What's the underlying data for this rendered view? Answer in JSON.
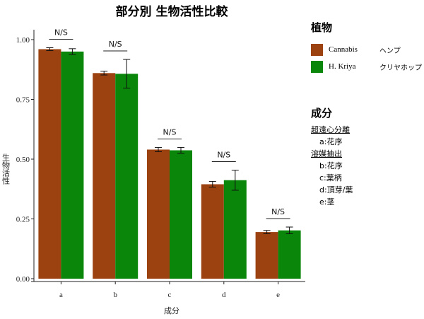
{
  "chart_data": {
    "type": "bar",
    "title": "部分別 生物活性比較",
    "xlabel": "成分",
    "ylabel": "生物活性",
    "categories": [
      "a",
      "b",
      "c",
      "d",
      "e"
    ],
    "ylim": [
      0,
      1.0
    ],
    "yticks": [
      "0.00",
      "0.25",
      "0.50",
      "0.75",
      "1.00"
    ],
    "series": [
      {
        "name": "Cannabis",
        "color": "#9b4210",
        "values": [
          0.96,
          0.86,
          0.54,
          0.395,
          0.195
        ],
        "errors": [
          0.006,
          0.008,
          0.009,
          0.012,
          0.007
        ]
      },
      {
        "name": "H. Kriya",
        "color": "#0a860a",
        "values": [
          0.95,
          0.857,
          0.537,
          0.412,
          0.202
        ],
        "errors": [
          0.012,
          0.06,
          0.012,
          0.042,
          0.014
        ]
      }
    ],
    "annotations": [
      "N/S",
      "N/S",
      "N/S",
      "N/S",
      "N/S"
    ],
    "grid": false,
    "legend_position": "right"
  },
  "legend": {
    "title": "植物",
    "items": [
      {
        "name": "Cannabis",
        "label_jp": "ヘンプ",
        "color": "#9b4210"
      },
      {
        "name": "H. Kriya",
        "label_jp": "クリヤホップ",
        "color": "#0a860a"
      }
    ]
  },
  "components": {
    "title": "成分",
    "group1": "超遠心分離",
    "group1_items": [
      "a:花序"
    ],
    "group2": "溶媒抽出",
    "group2_items": [
      "b:花序",
      "c:葉柄",
      "d:頂芽/葉",
      "e:茎"
    ]
  }
}
